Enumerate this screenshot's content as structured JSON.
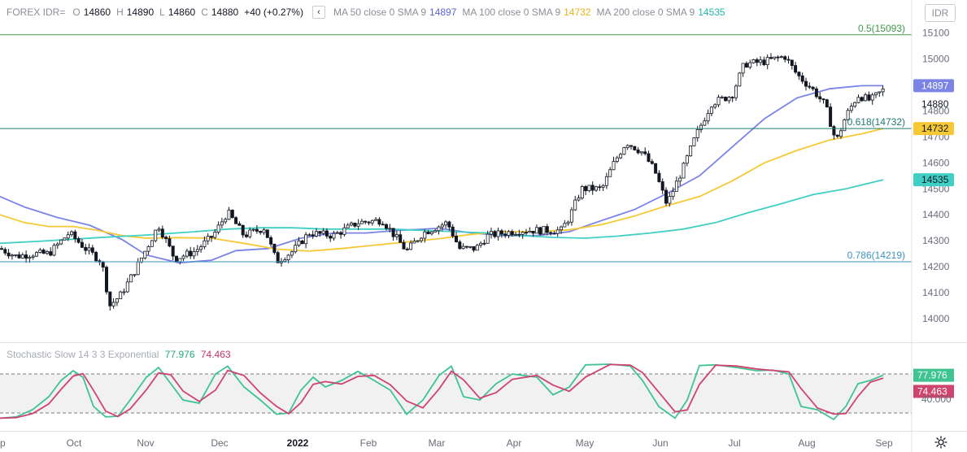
{
  "legend": {
    "symbol": "FOREX IDR=",
    "o_label": "O",
    "o_value": "14860",
    "h_label": "H",
    "h_value": "14890",
    "l_label": "L",
    "l_value": "14860",
    "c_label": "C",
    "c_value": "14880",
    "change": "+40 (+0.27%)",
    "collapse_icon": "chevron-left-icon",
    "ma50_label": "MA 50 close 0 SMA 9",
    "ma50_value": "14897",
    "ma100_label": "MA 100 close 0 SMA 9",
    "ma100_value": "14732",
    "ma200_label": "MA 200 close 0 SMA 9",
    "ma200_value": "14535"
  },
  "symbol_button": "IDR",
  "stoch_legend": {
    "label": "Stochastic Slow 14 3 3 Exponential",
    "k_value": "77.976",
    "d_value": "74.463"
  },
  "settings_icon": "gear-icon",
  "colors": {
    "up": "#ffffff",
    "down": "#131722",
    "ma50": "#7b83e6",
    "ma100": "#f6c934",
    "ma200": "#40cfc4",
    "stoch_k": "#3fc391",
    "stoch_d": "#d0436e",
    "fib_05": "#3f9a4b",
    "fib_618": "#1e7a72",
    "fib_786": "#3f93c2"
  },
  "chart_data": [
    {
      "type": "candlestick",
      "title": "",
      "ylim": [
        13900,
        15170
      ],
      "y_ticks": [
        14000,
        14100,
        14200,
        14300,
        14400,
        14500,
        14600,
        14700,
        14800,
        14900,
        15000,
        15100
      ],
      "x_ticks": [
        "Sep",
        "Oct",
        "Nov",
        "Dec",
        "2022",
        "Feb",
        "Mar",
        "Apr",
        "May",
        "Jun",
        "Jul",
        "Aug",
        "Sep"
      ],
      "last_close_label": "14880",
      "fib_levels": [
        {
          "label": "0.5(15093)",
          "value": 15093
        },
        {
          "label": "0.618(14732)",
          "value": 14732
        },
        {
          "label": "0.786(14219)",
          "value": 14219
        }
      ],
      "series": [
        {
          "name": "MA 50",
          "value_label": "14897",
          "points": [
            [
              0,
              14470
            ],
            [
              30,
              14430
            ],
            [
              70,
              14390
            ],
            [
              110,
              14360
            ],
            [
              150,
              14305
            ],
            [
              180,
              14245
            ],
            [
              220,
              14215
            ],
            [
              260,
              14225
            ],
            [
              290,
              14262
            ],
            [
              330,
              14270
            ],
            [
              370,
              14310
            ],
            [
              410,
              14330
            ],
            [
              450,
              14330
            ],
            [
              490,
              14340
            ],
            [
              540,
              14348
            ],
            [
              580,
              14330
            ],
            [
              620,
              14320
            ],
            [
              660,
              14320
            ],
            [
              700,
              14335
            ],
            [
              740,
              14378
            ],
            [
              780,
              14420
            ],
            [
              820,
              14482
            ],
            [
              860,
              14550
            ],
            [
              900,
              14660
            ],
            [
              940,
              14770
            ],
            [
              980,
              14850
            ],
            [
              1020,
              14885
            ],
            [
              1060,
              14897
            ],
            [
              1086,
              14897
            ]
          ]
        },
        {
          "name": "MA 100",
          "value_label": "14732",
          "points": [
            [
              0,
              14400
            ],
            [
              30,
              14370
            ],
            [
              60,
              14355
            ],
            [
              90,
              14355
            ],
            [
              120,
              14340
            ],
            [
              150,
              14320
            ],
            [
              180,
              14310
            ],
            [
              220,
              14312
            ],
            [
              260,
              14310
            ],
            [
              300,
              14290
            ],
            [
              340,
              14268
            ],
            [
              380,
              14260
            ],
            [
              420,
              14270
            ],
            [
              460,
              14283
            ],
            [
              500,
              14295
            ],
            [
              540,
              14308
            ],
            [
              580,
              14325
            ],
            [
              620,
              14335
            ],
            [
              660,
              14335
            ],
            [
              700,
              14342
            ],
            [
              740,
              14362
            ],
            [
              780,
              14395
            ],
            [
              820,
              14435
            ],
            [
              860,
              14470
            ],
            [
              900,
              14530
            ],
            [
              940,
              14600
            ],
            [
              980,
              14648
            ],
            [
              1020,
              14688
            ],
            [
              1060,
              14712
            ],
            [
              1086,
              14732
            ]
          ]
        },
        {
          "name": "MA 200",
          "value_label": "14535",
          "points": [
            [
              0,
              14290
            ],
            [
              60,
              14300
            ],
            [
              120,
              14312
            ],
            [
              180,
              14322
            ],
            [
              240,
              14335
            ],
            [
              280,
              14345
            ],
            [
              320,
              14350
            ],
            [
              360,
              14350
            ],
            [
              400,
              14345
            ],
            [
              440,
              14345
            ],
            [
              480,
              14345
            ],
            [
              520,
              14340
            ],
            [
              560,
              14335
            ],
            [
              600,
              14330
            ],
            [
              640,
              14320
            ],
            [
              680,
              14313
            ],
            [
              720,
              14310
            ],
            [
              760,
              14318
            ],
            [
              800,
              14330
            ],
            [
              840,
              14345
            ],
            [
              880,
              14370
            ],
            [
              920,
              14408
            ],
            [
              960,
              14442
            ],
            [
              1000,
              14478
            ],
            [
              1040,
              14500
            ],
            [
              1086,
              14535
            ]
          ]
        }
      ]
    },
    {
      "type": "line",
      "title": "Stochastic Slow 14 3 3 Exponential",
      "ylim": [
        0,
        100
      ],
      "y_ticks": [
        40
      ],
      "y_tick_labels": [
        "40.000"
      ],
      "bands": [
        20,
        80
      ],
      "series": [
        {
          "name": "%K",
          "value_label": "77.976"
        },
        {
          "name": "%D",
          "value_label": "74.463"
        }
      ]
    }
  ]
}
